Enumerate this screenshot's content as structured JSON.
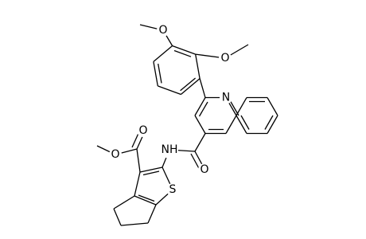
{
  "atom_labels": [
    "O",
    "O",
    "N",
    "NH",
    "O",
    "O",
    "O",
    "S"
  ]
}
